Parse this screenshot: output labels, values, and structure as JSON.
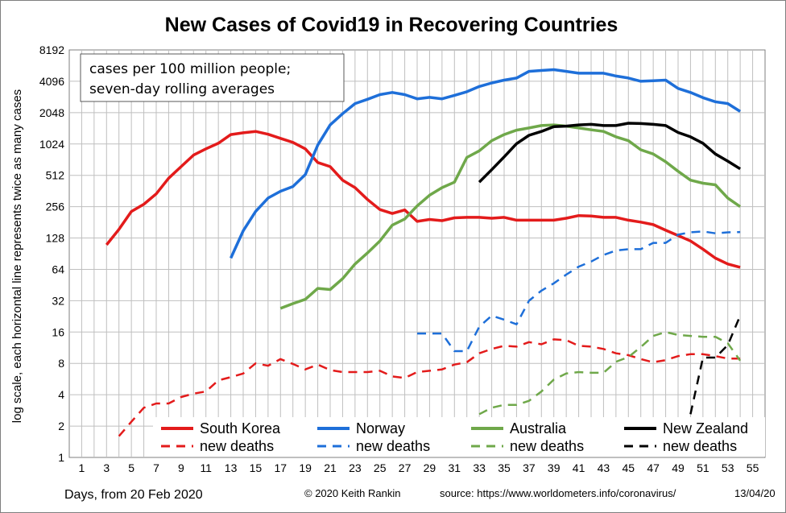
{
  "colors": {
    "south_korea": "#e31b1b",
    "norway": "#1e6fd9",
    "australia": "#6fa84a",
    "new_zealand": "#000000",
    "grid": "#bfbfbf"
  },
  "note": {
    "line1": "cases per 100 million people;",
    "line2": "seven-day rolling averages"
  },
  "footer": {
    "days": "Days, from 20 Feb 2020",
    "copyright": "© 2020  Keith  Rankin",
    "source": "source:  https://www.worldometers.info/coronavirus/",
    "date": "13/04/20"
  },
  "chart_data": {
    "type": "line",
    "title": "New Cases of Covid19 in Recovering Countries",
    "xlabel": "Days, from 20 Feb 2020",
    "ylabel": "log scale, each horizontal line represents twice as many cases",
    "yscale": "log2",
    "xlim": [
      0,
      56
    ],
    "ylim": [
      1,
      8192
    ],
    "grid": true,
    "legend_placement": "bottom",
    "x_ticks": [
      "1",
      "3",
      "5",
      "7",
      "9",
      "11",
      "13",
      "15",
      "17",
      "19",
      "21",
      "23",
      "25",
      "27",
      "29",
      "31",
      "33",
      "35",
      "37",
      "39",
      "41",
      "43",
      "45",
      "47",
      "49",
      "51",
      "53",
      "55"
    ],
    "y_ticks": [
      "1",
      "2",
      "4",
      "8",
      "16",
      "32",
      "64",
      "128",
      "256",
      "512",
      "1024",
      "2048",
      "4096",
      "8192"
    ],
    "series": [
      {
        "name": "South Korea",
        "key": "south_korea",
        "dash": false,
        "x": [
          3,
          4,
          5,
          6,
          7,
          8,
          9,
          10,
          11,
          12,
          13,
          14,
          15,
          16,
          17,
          18,
          19,
          20,
          21,
          22,
          23,
          24,
          25,
          26,
          27,
          28,
          29,
          30,
          31,
          32,
          33,
          34,
          35,
          36,
          37,
          38,
          39,
          40,
          41,
          42,
          43,
          44,
          45,
          46,
          47,
          48,
          49,
          50,
          51,
          52,
          53,
          54
        ],
        "y": [
          110,
          155,
          230,
          270,
          340,
          480,
          620,
          800,
          920,
          1040,
          1260,
          1310,
          1350,
          1270,
          1160,
          1060,
          920,
          680,
          620,
          460,
          390,
          300,
          240,
          220,
          238,
          185,
          193,
          188,
          200,
          202,
          202,
          198,
          202,
          190,
          190,
          190,
          190,
          198,
          210,
          208,
          202,
          202,
          190,
          182,
          172,
          152,
          135,
          120,
          100,
          82,
          72,
          67
        ]
      },
      {
        "name": "new deaths",
        "key": "south_korea",
        "dash": true,
        "x": [
          4,
          5,
          6,
          7,
          8,
          9,
          10,
          11,
          12,
          13,
          14,
          15,
          16,
          17,
          18,
          19,
          20,
          21,
          22,
          23,
          24,
          25,
          26,
          27,
          28,
          29,
          30,
          31,
          32,
          33,
          34,
          35,
          36,
          37,
          38,
          39,
          40,
          41,
          42,
          43,
          44,
          45,
          46,
          47,
          48,
          49,
          50,
          51,
          52,
          53,
          54
        ],
        "y": [
          1.6,
          2.2,
          3.0,
          3.3,
          3.3,
          3.8,
          4.1,
          4.3,
          5.5,
          5.9,
          6.4,
          8.0,
          7.6,
          8.8,
          7.9,
          7.0,
          7.8,
          6.9,
          6.6,
          6.6,
          6.6,
          6.8,
          6.0,
          5.8,
          6.6,
          6.8,
          7.0,
          7.8,
          8.2,
          10,
          11,
          11.8,
          11.6,
          12.8,
          12.2,
          13.6,
          13.4,
          11.8,
          11.6,
          11,
          10,
          9.6,
          8.8,
          8.2,
          8.6,
          9.4,
          9.8,
          9.8,
          9.4,
          8.9,
          8.9
        ]
      },
      {
        "name": "Norway",
        "key": "norway",
        "dash": false,
        "x": [
          13,
          14,
          15,
          16,
          17,
          18,
          19,
          20,
          21,
          22,
          23,
          24,
          25,
          26,
          27,
          28,
          29,
          30,
          31,
          32,
          33,
          34,
          35,
          36,
          37,
          38,
          39,
          40,
          41,
          42,
          43,
          44,
          45,
          46,
          47,
          48,
          49,
          50,
          51,
          52,
          53,
          54
        ],
        "y": [
          82,
          150,
          230,
          310,
          360,
          400,
          520,
          1000,
          1560,
          2000,
          2500,
          2750,
          3050,
          3200,
          3050,
          2780,
          2870,
          2780,
          3000,
          3250,
          3650,
          3950,
          4200,
          4400,
          5100,
          5200,
          5300,
          5100,
          4900,
          4900,
          4900,
          4600,
          4400,
          4100,
          4150,
          4200,
          3500,
          3200,
          2850,
          2600,
          2500,
          2100
        ]
      },
      {
        "name": "new deaths",
        "key": "norway",
        "dash": true,
        "x": [
          28,
          29,
          30,
          31,
          32,
          33,
          34,
          35,
          36,
          37,
          38,
          39,
          40,
          41,
          42,
          43,
          44,
          45,
          46,
          47,
          48,
          49,
          50,
          51,
          52,
          53,
          54
        ],
        "y": [
          15.5,
          15.5,
          15.5,
          10.5,
          10.5,
          18,
          23,
          21,
          19,
          32,
          40,
          47,
          57,
          68,
          76,
          88,
          97,
          100,
          100,
          115,
          115,
          138,
          145,
          148,
          142,
          145,
          146
        ]
      },
      {
        "name": "Australia",
        "key": "australia",
        "dash": false,
        "x": [
          17,
          18,
          19,
          20,
          21,
          22,
          23,
          24,
          25,
          26,
          27,
          28,
          29,
          30,
          31,
          32,
          33,
          34,
          35,
          36,
          37,
          38,
          39,
          40,
          41,
          42,
          43,
          44,
          45,
          46,
          47,
          48,
          49,
          50,
          51,
          52,
          53,
          54
        ],
        "y": [
          27,
          30,
          33,
          42,
          41,
          52,
          72,
          92,
          120,
          170,
          195,
          260,
          330,
          390,
          440,
          760,
          880,
          1100,
          1260,
          1390,
          1460,
          1540,
          1560,
          1520,
          1460,
          1400,
          1350,
          1200,
          1100,
          900,
          820,
          690,
          560,
          460,
          430,
          415,
          310,
          256
        ]
      },
      {
        "name": "new deaths",
        "key": "australia",
        "dash": true,
        "x": [
          33,
          34,
          35,
          36,
          37,
          38,
          39,
          40,
          41,
          42,
          43,
          44,
          45,
          46,
          47,
          48,
          49,
          50,
          51,
          52,
          53,
          54
        ],
        "y": [
          2.6,
          3.0,
          3.2,
          3.2,
          3.5,
          4.3,
          5.6,
          6.4,
          6.6,
          6.5,
          6.5,
          8.3,
          9.2,
          11.5,
          14.7,
          16,
          15,
          14.7,
          14.4,
          14.4,
          12.5,
          8.5
        ]
      },
      {
        "name": "New Zealand",
        "key": "new_zealand",
        "dash": false,
        "x": [
          33,
          34,
          35,
          36,
          37,
          38,
          39,
          40,
          41,
          42,
          43,
          44,
          45,
          46,
          47,
          48,
          49,
          50,
          51,
          52,
          53,
          54
        ],
        "y": [
          440,
          580,
          770,
          1030,
          1240,
          1350,
          1500,
          1520,
          1560,
          1580,
          1540,
          1540,
          1620,
          1610,
          1580,
          1540,
          1320,
          1200,
          1040,
          820,
          700,
          590
        ]
      },
      {
        "name": "new deaths",
        "key": "new_zealand",
        "dash": true,
        "x": [
          50,
          51,
          52,
          53,
          54
        ],
        "y": [
          2.6,
          9.1,
          9.1,
          12,
          23
        ]
      }
    ]
  }
}
